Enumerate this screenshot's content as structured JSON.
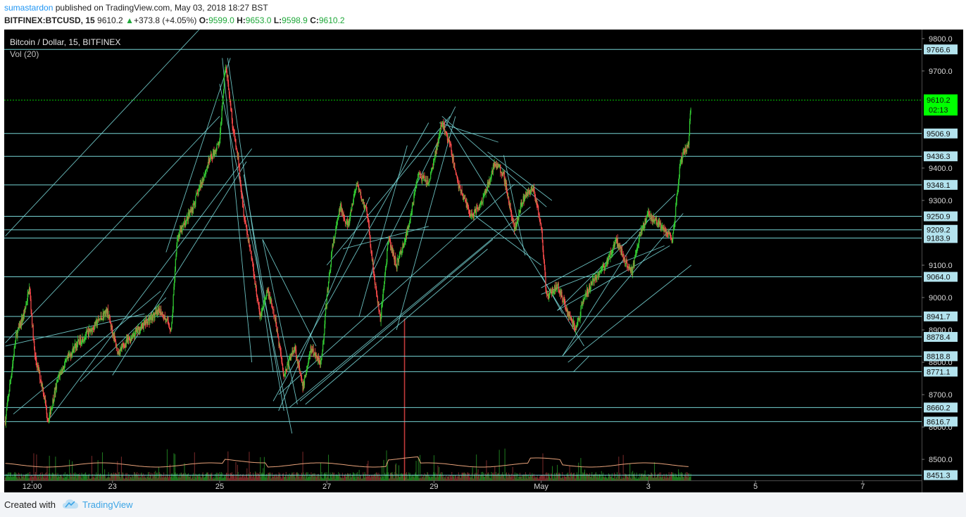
{
  "header": {
    "author": "sumastardon",
    "published": "published on TradingView.com, May 03, 2018 18:27 BST",
    "symbol": "BITFINEX:BTCUSD, 15",
    "price": "9610.2",
    "change": "+373.8 (+4.05%)",
    "o_label": "O:",
    "o": "9599.0",
    "h_label": "H:",
    "h": "9653.0",
    "l_label": "L:",
    "l": "9598.9",
    "c_label": "C:",
    "c": "9610.2"
  },
  "chart_data": {
    "type": "candlestick",
    "legend_title": "Bitcoin / Dollar, 15, BITFINEX",
    "legend_volume": "Vol (20)",
    "y_ticks": [
      "9800.0",
      "9700.0",
      "9400.0",
      "9300.0",
      "9100.0",
      "9000.0",
      "8900.0",
      "8800.0",
      "8700.0",
      "8600.0",
      "8500.0"
    ],
    "y_tick_values": [
      9800,
      9700,
      9400,
      9300,
      9100,
      9000,
      8900,
      8800,
      8700,
      8600,
      8500
    ],
    "x_ticks": [
      "12:00",
      "23",
      "25",
      "27",
      "29",
      "May",
      "3",
      "5",
      "7"
    ],
    "x_tick_days": [
      21.5,
      23,
      25,
      27,
      29,
      31,
      33,
      35,
      37
    ],
    "x_range_days": [
      20.98,
      38.1
    ],
    "y_range": [
      8435,
      9828
    ],
    "horizontal_levels": [
      9766.6,
      9506.9,
      9436.3,
      9348.1,
      9250.9,
      9209.2,
      9183.9,
      9064.0,
      8941.7,
      8878.4,
      8818.8,
      8771.1,
      8660.2,
      8616.7,
      8451.3
    ],
    "level_labels": [
      "9766.6",
      "9506.9",
      "9436.3",
      "9348.1",
      "9250.9",
      "9209.2",
      "9183.9",
      "9064.0",
      "8941.7",
      "8878.4",
      "8818.8",
      "8771.1",
      "8660.2",
      "8616.7",
      "8451.3"
    ],
    "last_price": "9610.2",
    "last_price_value": 9610.2,
    "countdown": "02:13",
    "price_path": [
      [
        21.0,
        8620
      ],
      [
        21.2,
        8880
      ],
      [
        21.35,
        8950
      ],
      [
        21.45,
        9030
      ],
      [
        21.55,
        8820
      ],
      [
        21.7,
        8720
      ],
      [
        21.8,
        8620
      ],
      [
        22.0,
        8760
      ],
      [
        22.3,
        8850
      ],
      [
        22.6,
        8900
      ],
      [
        22.9,
        8960
      ],
      [
        23.1,
        8830
      ],
      [
        23.3,
        8870
      ],
      [
        23.6,
        8920
      ],
      [
        23.9,
        8960
      ],
      [
        24.1,
        8900
      ],
      [
        24.2,
        9180
      ],
      [
        24.5,
        9280
      ],
      [
        24.8,
        9420
      ],
      [
        25.0,
        9480
      ],
      [
        25.1,
        9720
      ],
      [
        25.15,
        9680
      ],
      [
        25.25,
        9520
      ],
      [
        25.35,
        9420
      ],
      [
        25.45,
        9260
      ],
      [
        25.6,
        9120
      ],
      [
        25.75,
        8940
      ],
      [
        25.9,
        9020
      ],
      [
        26.05,
        8920
      ],
      [
        26.2,
        8760
      ],
      [
        26.4,
        8850
      ],
      [
        26.55,
        8720
      ],
      [
        26.7,
        8840
      ],
      [
        26.9,
        8800
      ],
      [
        27.0,
        9000
      ],
      [
        27.1,
        9150
      ],
      [
        27.25,
        9280
      ],
      [
        27.4,
        9220
      ],
      [
        27.55,
        9350
      ],
      [
        27.75,
        9260
      ],
      [
        27.9,
        9040
      ],
      [
        28.0,
        8930
      ],
      [
        28.15,
        9180
      ],
      [
        28.3,
        9100
      ],
      [
        28.5,
        9200
      ],
      [
        28.7,
        9380
      ],
      [
        28.9,
        9350
      ],
      [
        29.15,
        9540
      ],
      [
        29.3,
        9470
      ],
      [
        29.45,
        9350
      ],
      [
        29.7,
        9250
      ],
      [
        29.9,
        9300
      ],
      [
        30.15,
        9420
      ],
      [
        30.3,
        9380
      ],
      [
        30.5,
        9210
      ],
      [
        30.65,
        9300
      ],
      [
        30.85,
        9340
      ],
      [
        31.0,
        9220
      ],
      [
        31.1,
        9000
      ],
      [
        31.3,
        9040
      ],
      [
        31.5,
        8950
      ],
      [
        31.65,
        8900
      ],
      [
        31.8,
        9000
      ],
      [
        32.0,
        9060
      ],
      [
        32.2,
        9100
      ],
      [
        32.4,
        9180
      ],
      [
        32.55,
        9120
      ],
      [
        32.7,
        9080
      ],
      [
        32.85,
        9200
      ],
      [
        33.0,
        9260
      ],
      [
        33.15,
        9230
      ],
      [
        33.3,
        9210
      ],
      [
        33.45,
        9180
      ],
      [
        33.6,
        9420
      ],
      [
        33.7,
        9460
      ],
      [
        33.75,
        9480
      ],
      [
        33.8,
        9610
      ]
    ],
    "volume_spike_day": 28.45,
    "candle_up_color": "#33cc33",
    "candle_down_color": "#ff4d4d",
    "line_color": "#76d3d3",
    "level_label_bg": "#b3e3ee",
    "last_price_color": "#00ff00",
    "grid": false
  },
  "footer": {
    "created_with": "Created with",
    "brand": "TradingView"
  }
}
